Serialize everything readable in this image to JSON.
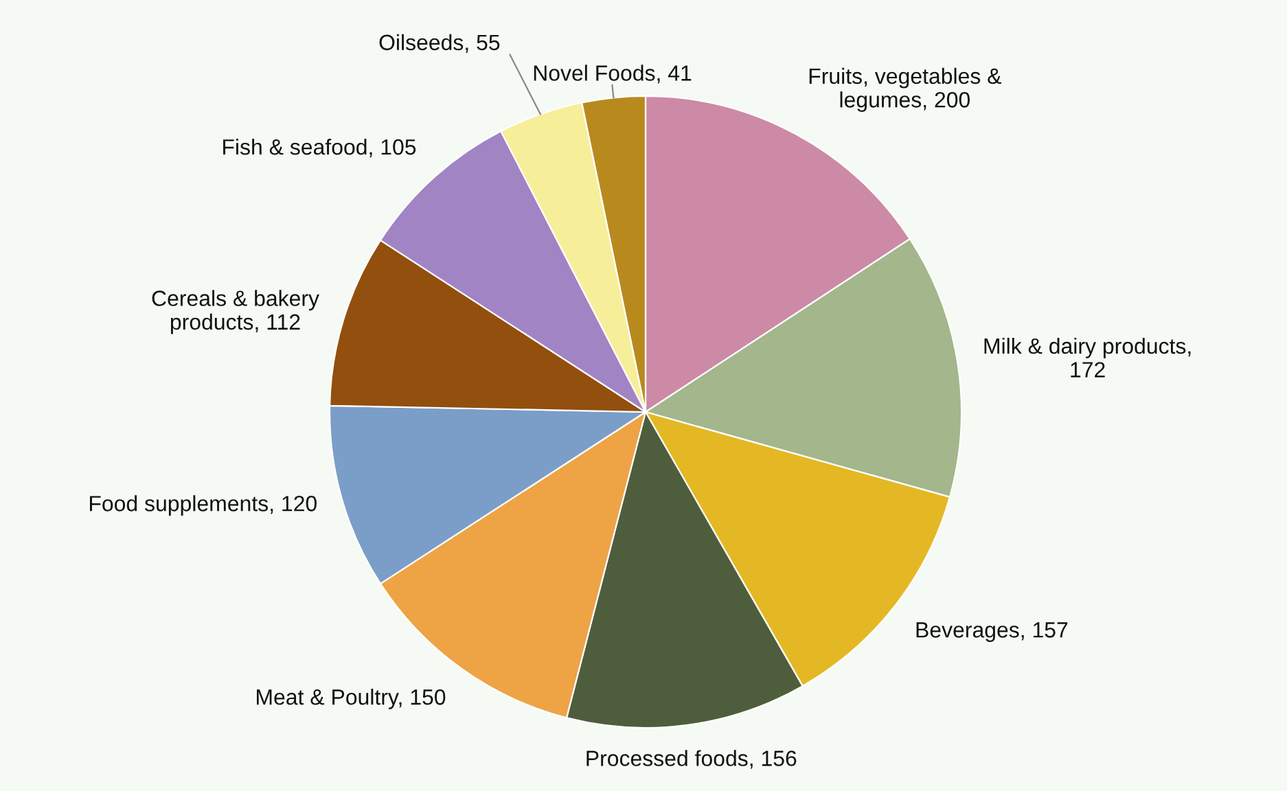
{
  "chart_data": {
    "type": "pie",
    "categories": [
      "Fruits, vegetables & legumes, 200",
      "Milk & dairy products, 172",
      "Beverages, 157",
      "Processed foods, 156",
      "Meat & Poultry, 150",
      "Food supplements, 120",
      "Cereals & bakery products, 112",
      "Fish & seafood, 105",
      "Oilseeds, 55",
      "Novel Foods, 41"
    ],
    "values": [
      200,
      172,
      157,
      156,
      150,
      120,
      112,
      105,
      55,
      41
    ],
    "colors": [
      "#cc8aa6",
      "#a3b68c",
      "#e4b824",
      "#4e5e3c",
      "#eea345",
      "#7b9ec8",
      "#934f0e",
      "#a084c4",
      "#f7ee9a",
      "#b88a1e"
    ]
  }
}
